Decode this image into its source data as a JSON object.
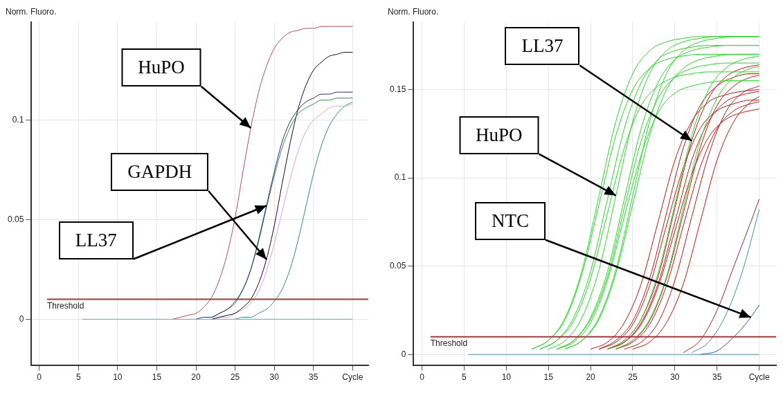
{
  "chart_data": [
    {
      "type": "line",
      "ylabel": "Norm. Fluoro.",
      "xlim": [
        -1,
        42
      ],
      "xticks": [
        0,
        5,
        10,
        15,
        20,
        25,
        30,
        35,
        {
          "value": 40,
          "label": "Cycle"
        }
      ],
      "ylim": [
        -0.023,
        0.149
      ],
      "yticks": [
        0,
        0.05,
        0.1
      ],
      "grid": true,
      "marker": "none",
      "series": [
        {
          "color": "#33c0c0",
          "x": [
            5.5,
            40
          ],
          "values": [
            0,
            0
          ]
        },
        {
          "color": "#c8465a",
          "x": [
            17,
            18,
            19,
            20,
            21,
            22,
            23,
            24,
            25,
            26,
            27,
            28,
            29,
            30,
            31,
            32,
            33,
            34,
            35,
            36,
            37,
            38,
            39,
            40
          ],
          "values": [
            0,
            0.001,
            0.002,
            0.003,
            0.006,
            0.011,
            0.02,
            0.033,
            0.051,
            0.074,
            0.096,
            0.114,
            0.127,
            0.136,
            0.141,
            0.144,
            0.145,
            0.146,
            0.146,
            0.147,
            0.147,
            0.147,
            0.147,
            0.147
          ]
        },
        {
          "color": "#2a2a7a",
          "x": [
            20,
            21,
            22,
            23,
            24,
            25,
            26,
            27,
            28,
            29,
            30,
            31,
            32,
            33,
            34,
            35,
            36,
            37,
            38,
            39,
            40
          ],
          "values": [
            0,
            0.001,
            0.001,
            0.003,
            0.005,
            0.009,
            0.015,
            0.025,
            0.04,
            0.057,
            0.074,
            0.089,
            0.099,
            0.105,
            0.109,
            0.111,
            0.113,
            0.113,
            0.114,
            0.114,
            0.114
          ]
        },
        {
          "color": "#3a8a3a",
          "x": [
            22,
            23,
            24,
            25,
            26,
            27,
            28,
            29,
            30,
            31,
            32,
            33,
            34,
            35,
            36,
            37,
            38,
            39,
            40
          ],
          "values": [
            0.001,
            0.003,
            0.005,
            0.008,
            0.015,
            0.025,
            0.039,
            0.056,
            0.072,
            0.086,
            0.096,
            0.103,
            0.106,
            0.108,
            0.11,
            0.11,
            0.111,
            0.111,
            0.111
          ]
        },
        {
          "color": "#111111",
          "x": [
            22,
            23,
            24,
            25,
            26,
            27,
            28,
            29,
            30,
            31,
            32,
            33,
            34,
            35,
            36,
            37,
            38,
            39,
            40
          ],
          "values": [
            0,
            0.001,
            0.002,
            0.003,
            0.006,
            0.01,
            0.018,
            0.03,
            0.047,
            0.068,
            0.088,
            0.105,
            0.117,
            0.125,
            0.129,
            0.132,
            0.133,
            0.134,
            0.134
          ]
        },
        {
          "color": "#d9a0d9",
          "x": [
            22,
            23,
            24,
            25,
            26,
            27,
            28,
            29,
            30,
            31,
            32,
            33,
            34,
            35,
            36,
            37,
            38,
            39,
            40
          ],
          "values": [
            0,
            0.001,
            0.001,
            0.003,
            0.005,
            0.008,
            0.014,
            0.024,
            0.038,
            0.054,
            0.07,
            0.084,
            0.094,
            0.1,
            0.103,
            0.106,
            0.107,
            0.107,
            0.108
          ]
        },
        {
          "color": "#3a8a7a",
          "x": [
            25,
            26,
            27,
            28,
            29,
            30,
            31,
            32,
            33,
            34,
            35,
            36,
            37,
            38,
            39,
            40
          ],
          "values": [
            0,
            0.001,
            0.001,
            0.003,
            0.005,
            0.009,
            0.015,
            0.025,
            0.039,
            0.056,
            0.073,
            0.087,
            0.097,
            0.103,
            0.107,
            0.109
          ]
        }
      ],
      "ref_lines": [
        {
          "axis": "y",
          "value": 0.01,
          "label": "Threshold",
          "color": "#b03040"
        }
      ],
      "annotations": [
        {
          "text": "HuPO",
          "x": 27,
          "y": 0.096
        },
        {
          "text": "GAPDH",
          "x": 29,
          "y": 0.03
        },
        {
          "text": "LL37",
          "x": 29,
          "y": 0.057
        }
      ]
    },
    {
      "type": "line",
      "ylabel": "Norm. Fluoro.",
      "xlim": [
        -1,
        42
      ],
      "xticks": [
        0,
        5,
        10,
        15,
        20,
        25,
        30,
        35,
        {
          "value": 40,
          "label": "Cycle"
        }
      ],
      "ylim": [
        -0.006,
        0.188
      ],
      "yticks": [
        0,
        0.05,
        0.1,
        0.15
      ],
      "grid": true,
      "marker": "none",
      "series": [
        {
          "color": "#4a9aaa",
          "x": [
            5.5,
            40
          ],
          "values": [
            0,
            0
          ]
        },
        {
          "color": "#22dd22",
          "x": [
            13,
            15,
            17,
            19,
            21,
            23,
            25,
            27,
            29,
            31,
            33,
            35,
            37,
            39,
            40
          ],
          "values": [
            0.003,
            0.008,
            0.021,
            0.048,
            0.09,
            0.132,
            0.159,
            0.172,
            0.177,
            0.179,
            0.18,
            0.18,
            0.18,
            0.18,
            0.18
          ]
        },
        {
          "color": "#22dd22",
          "x": [
            13,
            15,
            17,
            19,
            21,
            23,
            25,
            27,
            29,
            31,
            33,
            35,
            37,
            39,
            40
          ],
          "values": [
            0.003,
            0.008,
            0.02,
            0.046,
            0.085,
            0.124,
            0.15,
            0.162,
            0.167,
            0.169,
            0.17,
            0.17,
            0.17,
            0.17,
            0.17
          ]
        },
        {
          "color": "#22dd22",
          "x": [
            14,
            16,
            18,
            20,
            22,
            24,
            26,
            28,
            30,
            32,
            34,
            36,
            38,
            40
          ],
          "values": [
            0.003,
            0.008,
            0.021,
            0.047,
            0.088,
            0.128,
            0.154,
            0.167,
            0.172,
            0.174,
            0.175,
            0.175,
            0.175,
            0.175
          ]
        },
        {
          "color": "#22dd22",
          "x": [
            14,
            16,
            18,
            20,
            22,
            24,
            26,
            28,
            30,
            32,
            34,
            36,
            38,
            40
          ],
          "values": [
            0.003,
            0.008,
            0.019,
            0.043,
            0.08,
            0.117,
            0.141,
            0.152,
            0.157,
            0.159,
            0.16,
            0.16,
            0.16,
            0.16
          ]
        },
        {
          "color": "#22dd22",
          "x": [
            15,
            17,
            19,
            21,
            23,
            25,
            27,
            29,
            31,
            33,
            35,
            37,
            39,
            40
          ],
          "values": [
            0.003,
            0.008,
            0.021,
            0.048,
            0.09,
            0.132,
            0.159,
            0.172,
            0.177,
            0.179,
            0.18,
            0.18,
            0.18,
            0.18
          ]
        },
        {
          "color": "#22dd22",
          "x": [
            16,
            18,
            20,
            22,
            24,
            26,
            28,
            30,
            32,
            34,
            36,
            38,
            40
          ],
          "values": [
            0.003,
            0.008,
            0.021,
            0.047,
            0.088,
            0.128,
            0.154,
            0.167,
            0.172,
            0.174,
            0.175,
            0.175,
            0.175
          ]
        },
        {
          "color": "#22dd22",
          "x": [
            16,
            18,
            20,
            22,
            24,
            26,
            28,
            30,
            32,
            34,
            36,
            38,
            40
          ],
          "values": [
            0.003,
            0.008,
            0.02,
            0.044,
            0.083,
            0.121,
            0.145,
            0.157,
            0.162,
            0.164,
            0.165,
            0.165,
            0.165
          ]
        },
        {
          "color": "#22dd22",
          "x": [
            16,
            18,
            20,
            22,
            24,
            26,
            28,
            30,
            32,
            34,
            36,
            38,
            40
          ],
          "values": [
            0.003,
            0.007,
            0.018,
            0.042,
            0.078,
            0.113,
            0.137,
            0.148,
            0.152,
            0.154,
            0.155,
            0.155,
            0.155
          ]
        },
        {
          "color": "#22dd22",
          "x": [
            17,
            19,
            21,
            23,
            25,
            27,
            29,
            31,
            33,
            35,
            37,
            39,
            40
          ],
          "values": [
            0.003,
            0.008,
            0.021,
            0.048,
            0.09,
            0.132,
            0.159,
            0.172,
            0.177,
            0.179,
            0.18,
            0.18,
            0.18
          ]
        },
        {
          "color": "#22dd22",
          "x": [
            17,
            19,
            21,
            23,
            25,
            27,
            29,
            31,
            33,
            35,
            37,
            39,
            40
          ],
          "values": [
            0.003,
            0.008,
            0.02,
            0.046,
            0.085,
            0.124,
            0.15,
            0.162,
            0.167,
            0.169,
            0.17,
            0.17,
            0.17
          ]
        },
        {
          "color": "#22dd22",
          "x": [
            22,
            24,
            26,
            28,
            30,
            32,
            34,
            36,
            38,
            40
          ],
          "values": [
            0.003,
            0.008,
            0.02,
            0.046,
            0.085,
            0.124,
            0.15,
            0.162,
            0.167,
            0.169
          ]
        },
        {
          "color": "#22dd22",
          "x": [
            23,
            25,
            27,
            29,
            31,
            33,
            35,
            37,
            39,
            40
          ],
          "values": [
            0.003,
            0.008,
            0.02,
            0.044,
            0.083,
            0.121,
            0.145,
            0.157,
            0.162,
            0.163
          ]
        },
        {
          "color": "#cc1111",
          "x": [
            20,
            22,
            24,
            26,
            28,
            30,
            32,
            34,
            36,
            38,
            40
          ],
          "values": [
            0.003,
            0.007,
            0.018,
            0.04,
            0.075,
            0.11,
            0.132,
            0.143,
            0.147,
            0.149,
            0.15
          ]
        },
        {
          "color": "#cc1111",
          "x": [
            21,
            23,
            25,
            27,
            29,
            31,
            33,
            35,
            37,
            39,
            40
          ],
          "values": [
            0.003,
            0.008,
            0.019,
            0.043,
            0.08,
            0.117,
            0.141,
            0.152,
            0.157,
            0.159,
            0.159
          ]
        },
        {
          "color": "#cc1111",
          "x": [
            21,
            23,
            25,
            27,
            29,
            31,
            33,
            35,
            37,
            39,
            40
          ],
          "values": [
            0.003,
            0.007,
            0.017,
            0.039,
            0.073,
            0.106,
            0.128,
            0.138,
            0.142,
            0.144,
            0.144
          ]
        },
        {
          "color": "#cc1111",
          "x": [
            22,
            24,
            26,
            28,
            30,
            32,
            34,
            36,
            38,
            40
          ],
          "values": [
            0.003,
            0.008,
            0.02,
            0.044,
            0.083,
            0.121,
            0.145,
            0.157,
            0.162,
            0.164
          ]
        },
        {
          "color": "#cc1111",
          "x": [
            22,
            24,
            26,
            28,
            30,
            32,
            34,
            36,
            38,
            40
          ],
          "values": [
            0.003,
            0.007,
            0.018,
            0.04,
            0.075,
            0.11,
            0.132,
            0.143,
            0.147,
            0.149
          ]
        },
        {
          "color": "#cc1111",
          "x": [
            22,
            24,
            26,
            28,
            30,
            32,
            34,
            36,
            38,
            40
          ],
          "values": [
            0.003,
            0.007,
            0.017,
            0.038,
            0.07,
            0.102,
            0.123,
            0.133,
            0.137,
            0.139
          ]
        },
        {
          "color": "#cc1111",
          "x": [
            23,
            25,
            27,
            29,
            31,
            33,
            35,
            37,
            39,
            40
          ],
          "values": [
            0.003,
            0.008,
            0.019,
            0.043,
            0.08,
            0.117,
            0.141,
            0.152,
            0.157,
            0.158
          ]
        },
        {
          "color": "#cc1111",
          "x": [
            23,
            25,
            27,
            29,
            31,
            33,
            35,
            37,
            39,
            40
          ],
          "values": [
            0.003,
            0.007,
            0.017,
            0.039,
            0.073,
            0.106,
            0.128,
            0.138,
            0.142,
            0.143
          ]
        },
        {
          "color": "#cc1111",
          "x": [
            24,
            26,
            28,
            30,
            32,
            34,
            36,
            38,
            40
          ],
          "values": [
            0.003,
            0.007,
            0.018,
            0.042,
            0.078,
            0.113,
            0.137,
            0.148,
            0.152
          ]
        },
        {
          "color": "#cc1111",
          "x": [
            25,
            27,
            29,
            31,
            33,
            35,
            37,
            39,
            40
          ],
          "values": [
            0.003,
            0.007,
            0.018,
            0.04,
            0.075,
            0.11,
            0.132,
            0.143,
            0.146
          ]
        },
        {
          "color": "#a02828",
          "x": [
            31,
            33,
            35,
            37,
            39,
            40
          ],
          "values": [
            0.001,
            0.008,
            0.025,
            0.05,
            0.075,
            0.088
          ]
        },
        {
          "color": "#3a8ab0",
          "x": [
            32,
            34,
            36,
            38,
            40
          ],
          "values": [
            0.001,
            0.007,
            0.022,
            0.047,
            0.082
          ]
        },
        {
          "color": "#2a5a8a",
          "x": [
            33,
            35,
            37,
            38,
            39,
            40
          ],
          "values": [
            0,
            0.002,
            0.01,
            0.015,
            0.021,
            0.028
          ]
        }
      ],
      "ref_lines": [
        {
          "axis": "y",
          "value": 0.01,
          "label": "Threshold",
          "color": "#b03040"
        }
      ],
      "annotations": [
        {
          "text": "LL37",
          "x": 32,
          "y": 0.121
        },
        {
          "text": "HuPO",
          "x": 23,
          "y": 0.09
        },
        {
          "text": "NTC",
          "x": 39,
          "y": 0.021
        }
      ]
    }
  ]
}
